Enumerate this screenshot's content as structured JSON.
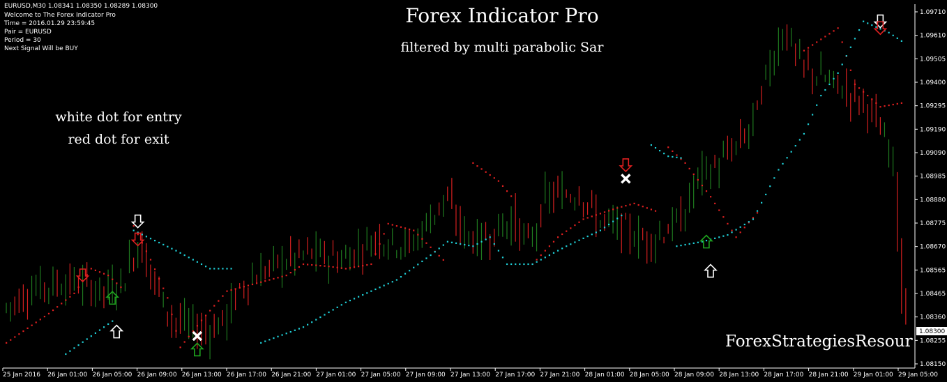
{
  "header": {
    "symbol_line": "EURUSD,M30  1.08341 1.08350 1.08289 1.08300",
    "welcome": "Welcome to The Forex Indicator Pro",
    "time": "Time = 2016.01.29 23:59:45",
    "pair": "Pair = EURUSD",
    "period": "Period = 30",
    "next_signal": "Next Signal Will be BUY"
  },
  "title": "Forex Indicator Pro",
  "subtitle": "filtered by multi parabolic Sar",
  "notes": {
    "entry": "white dot for entry",
    "exit": "red dot for exit"
  },
  "watermark": "ForexStrategiesResour",
  "colors": {
    "background": "#000000",
    "bull": "#1f7a1f",
    "bear": "#d62020",
    "sar_support": "#20d0d8",
    "sar_resist": "#e02020",
    "grid_text": "#ffffff"
  },
  "chart_data": {
    "type": "candlestick",
    "symbol": "EURUSD",
    "timeframe": "M30",
    "current_price": "1.08300",
    "ylim": [
      1.0815,
      1.0975
    ],
    "y_ticks": [
      "1.09710",
      "1.09610",
      "1.09505",
      "1.09400",
      "1.09295",
      "1.09190",
      "1.09090",
      "1.08985",
      "1.08880",
      "1.08775",
      "1.08670",
      "1.08565",
      "1.08465",
      "1.08360",
      "1.08255",
      "1.08150"
    ],
    "x_ticks": [
      "25 Jan 2016",
      "26 Jan 01:00",
      "26 Jan 05:00",
      "26 Jan 09:00",
      "26 Jan 13:00",
      "26 Jan 17:00",
      "26 Jan 21:00",
      "27 Jan 01:00",
      "27 Jan 05:00",
      "27 Jan 09:00",
      "27 Jan 13:00",
      "27 Jan 17:00",
      "27 Jan 21:00",
      "28 Jan 01:00",
      "28 Jan 05:00",
      "28 Jan 09:00",
      "28 Jan 13:00",
      "28 Jan 17:00",
      "28 Jan 21:00",
      "29 Jan 01:00",
      "29 Jan 05:00"
    ],
    "trend": [
      [
        0,
        1.084
      ],
      [
        8,
        1.085
      ],
      [
        16,
        1.0852
      ],
      [
        24,
        1.0848
      ],
      [
        28,
        1.0852
      ],
      [
        32,
        1.087
      ],
      [
        36,
        1.085
      ],
      [
        40,
        1.0835
      ],
      [
        48,
        1.083
      ],
      [
        52,
        1.0835
      ],
      [
        56,
        1.085
      ],
      [
        64,
        1.086
      ],
      [
        72,
        1.0865
      ],
      [
        80,
        1.0862
      ],
      [
        88,
        1.0872
      ],
      [
        96,
        1.0868
      ],
      [
        104,
        1.089
      ],
      [
        108,
        1.0875
      ],
      [
        112,
        1.087
      ],
      [
        120,
        1.088
      ],
      [
        124,
        1.0868
      ],
      [
        128,
        1.089
      ],
      [
        136,
        1.0892
      ],
      [
        140,
        1.088
      ],
      [
        144,
        1.0877
      ],
      [
        152,
        1.087
      ],
      [
        160,
        1.088
      ],
      [
        164,
        1.09
      ],
      [
        168,
        1.0903
      ],
      [
        176,
        1.092
      ],
      [
        180,
        1.0945
      ],
      [
        184,
        1.0965
      ],
      [
        188,
        1.0948
      ],
      [
        196,
        1.094
      ],
      [
        204,
        1.093
      ],
      [
        210,
        1.0905
      ],
      [
        212,
        1.084
      ]
    ],
    "sar_resistance": [
      [
        0,
        1.0825
      ],
      [
        10,
        1.0838
      ],
      [
        16,
        1.0847
      ],
      [
        20,
        1.0858
      ],
      [
        24,
        1.0855
      ],
      [
        28,
        1.0848
      ],
      [
        30,
        1.0877
      ],
      [
        34,
        1.0862
      ],
      [
        38,
        1.0845
      ],
      [
        41,
        1.0823
      ],
      [
        46,
        1.0835
      ],
      [
        52,
        1.0848
      ],
      [
        60,
        1.0852
      ],
      [
        66,
        1.0855
      ],
      [
        70,
        1.086
      ],
      [
        76,
        1.0859
      ],
      [
        80,
        1.0858
      ],
      [
        86,
        1.086
      ],
      [
        90,
        1.0878
      ],
      [
        96,
        1.0875
      ],
      [
        104,
        1.086
      ],
      [
        110,
        1.0905
      ],
      [
        116,
        1.0897
      ],
      [
        120,
        1.0888
      ],
      [
        124,
        1.086
      ],
      [
        130,
        1.0872
      ],
      [
        136,
        1.088
      ],
      [
        144,
        1.0885
      ],
      [
        148,
        1.0887
      ],
      [
        154,
        1.0883
      ],
      [
        156,
        1.0912
      ],
      [
        160,
        1.0905
      ],
      [
        166,
        1.089
      ],
      [
        172,
        1.0872
      ],
      [
        178,
        1.0885
      ],
      [
        184,
        1.0915
      ],
      [
        188,
        1.0955
      ],
      [
        196,
        1.0965
      ],
      [
        200,
        1.094
      ],
      [
        206,
        1.093
      ],
      [
        212,
        1.0932
      ]
    ],
    "sar_support": [
      [
        14,
        1.082
      ],
      [
        20,
        1.0828
      ],
      [
        26,
        1.0836
      ],
      [
        30,
        1.0875
      ],
      [
        40,
        1.0866
      ],
      [
        48,
        1.0858
      ],
      [
        54,
        1.0858
      ],
      [
        60,
        1.0825
      ],
      [
        70,
        1.0832
      ],
      [
        80,
        1.0843
      ],
      [
        92,
        1.0853
      ],
      [
        100,
        1.0864
      ],
      [
        104,
        1.087
      ],
      [
        110,
        1.0868
      ],
      [
        114,
        1.0872
      ],
      [
        118,
        1.086
      ],
      [
        124,
        1.086
      ],
      [
        132,
        1.0868
      ],
      [
        140,
        1.0875
      ],
      [
        146,
        1.0883
      ],
      [
        152,
        1.0913
      ],
      [
        156,
        1.0908
      ],
      [
        160,
        1.0907
      ],
      [
        158,
        1.0868
      ],
      [
        164,
        1.087
      ],
      [
        170,
        1.0873
      ],
      [
        176,
        1.088
      ],
      [
        182,
        1.0902
      ],
      [
        188,
        1.0918
      ],
      [
        192,
        1.0935
      ],
      [
        196,
        1.0945
      ],
      [
        202,
        1.0968
      ],
      [
        208,
        1.0963
      ],
      [
        212,
        1.0958
      ]
    ],
    "signals": [
      {
        "type": "buy",
        "kind": "exit",
        "bar": 25,
        "price": 1.0845
      },
      {
        "type": "sell",
        "kind": "exit",
        "bar": 18,
        "price": 1.0855
      },
      {
        "type": "buy",
        "kind": "entry",
        "bar": 26,
        "price": 1.083
      },
      {
        "type": "sell",
        "kind": "entry",
        "bar": 31,
        "price": 1.0879
      },
      {
        "type": "sell",
        "kind": "exit",
        "bar": 31,
        "price": 1.0871
      },
      {
        "type": "close",
        "kind": "entry",
        "bar": 45,
        "price": 1.0828
      },
      {
        "type": "buy",
        "kind": "exit",
        "bar": 45,
        "price": 1.0822
      },
      {
        "type": "sell",
        "kind": "exit",
        "bar": 146,
        "price": 1.0904
      },
      {
        "type": "close",
        "kind": "entry",
        "bar": 146,
        "price": 1.0898
      },
      {
        "type": "buy",
        "kind": "exit",
        "bar": 165,
        "price": 1.087
      },
      {
        "type": "buy",
        "kind": "entry",
        "bar": 166,
        "price": 1.0857
      },
      {
        "type": "sell",
        "kind": "entry",
        "bar": 206,
        "price": 1.0968
      },
      {
        "type": "sell",
        "kind": "exit",
        "bar": 206,
        "price": 1.0965
      }
    ]
  }
}
